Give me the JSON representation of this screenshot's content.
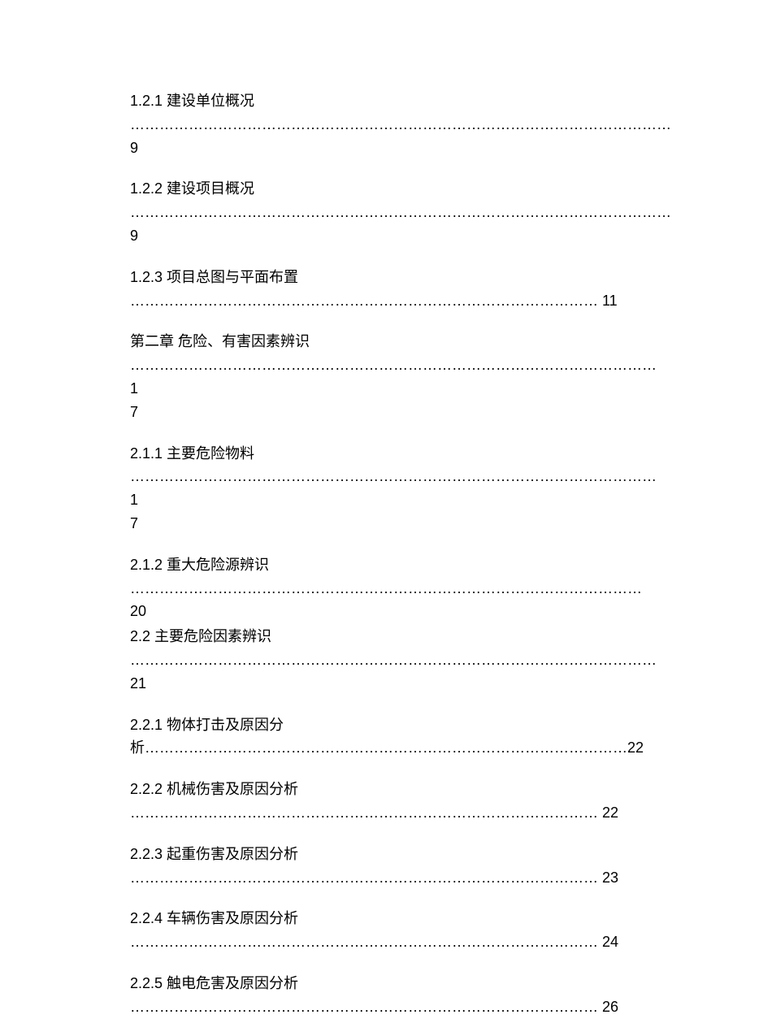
{
  "text_color": "#000000",
  "entries": [
    {
      "title": "1.2.1 建设单位概况",
      "leader": "…………………………………………………………………………………………………",
      "page": "9",
      "page_wrapped": true
    },
    {
      "title": "1.2.2 建设项目概况",
      "leader": "…………………………………………………………………………………………………",
      "page": "9",
      "page_wrapped": true
    },
    {
      "title": "1.2.3 项目总图与平面布置",
      "leader": "……………………………………………………………………………………",
      "page": "11",
      "page_wrapped": false
    },
    {
      "title": "第二章 危险、有害因素辨识",
      "leader": "………………………………………………………………………………………………1",
      "page": "7",
      "page_wrapped": true
    },
    {
      "title": "2.1.1 主要危险物料",
      "leader": "………………………………………………………………………………………………1",
      "page": "7",
      "page_wrapped": true
    },
    {
      "title": "2.1.2 重大危险源辨识",
      "leader": "……………………………………………………………………………………………",
      "page": "20",
      "page_wrapped": false,
      "tight_bottom": true
    },
    {
      "title": "2.2 主要危险因素辨识",
      "leader": "………………………………………………………………………………………………",
      "page": "21",
      "page_wrapped": true
    },
    {
      "title": "2.2.1 物体打击及原因分",
      "title2": "析",
      "leader": "………………………………………………………………………………………",
      "page": "22",
      "page_wrapped": false,
      "title_break": true
    },
    {
      "title": "2.2.2 机械伤害及原因分析",
      "leader": "……………………………………………………………………………………",
      "page": "22",
      "page_wrapped": false
    },
    {
      "title": "2.2.3 起重伤害及原因分析",
      "leader": "……………………………………………………………………………………",
      "page": "23",
      "page_wrapped": false
    },
    {
      "title": "2.2.4 车辆伤害及原因分析",
      "leader": "……………………………………………………………………………………",
      "page": "24",
      "page_wrapped": false
    },
    {
      "title": "2.2.5 触电危害及原因分析",
      "leader": "……………………………………………………………………………………",
      "page": "26",
      "page_wrapped": false
    }
  ]
}
